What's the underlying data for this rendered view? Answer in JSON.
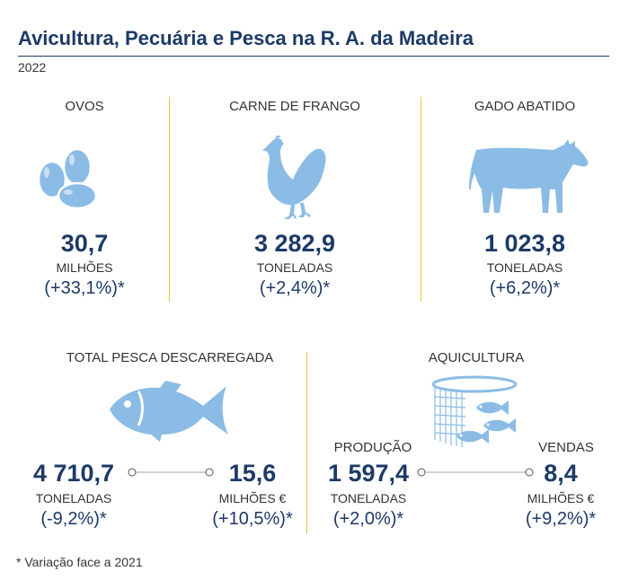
{
  "title": "Avicultura, Pecuária e Pesca na R. A. da Madeira",
  "year": "2022",
  "blocks": {
    "ovos": {
      "label": "OVOS",
      "value": "30,7",
      "unit": "MILHÕES",
      "variation": "(+33,1%)*"
    },
    "frango": {
      "label": "CARNE DE FRANGO",
      "value": "3 282,9",
      "unit": "TONELADAS",
      "variation": "(+2,4%)*"
    },
    "gado": {
      "label": "GADO ABATIDO",
      "value": "1 023,8",
      "unit": "TONELADAS",
      "variation": "(+6,2%)*"
    },
    "pesca": {
      "label": "TOTAL PESCA DESCARREGADA",
      "left": {
        "value": "4 710,7",
        "unit": "TONELADAS",
        "variation": "(-9,2%)*"
      },
      "right": {
        "value": "15,6",
        "unit": "MILHÕES €",
        "variation": "(+10,5%)*"
      }
    },
    "aquicultura": {
      "label": "AQUICULTURA",
      "left": {
        "sublabel": "PRODUÇÃO",
        "value": "1 597,4",
        "unit": "TONELADAS",
        "variation": "(+2,0%)*"
      },
      "right": {
        "sublabel": "VENDAS",
        "value": "8,4",
        "unit": "MILHÕES €",
        "variation": "(+9,2%)*"
      }
    }
  },
  "footnote": "* Variação face a 2021",
  "colors": {
    "primary": "#1d3a66",
    "icon": "#8bbce6",
    "separator": "#e8c53a"
  },
  "icons": [
    "eggs-icon",
    "chicken-icon",
    "cow-icon",
    "fish-icon",
    "fish-farm-icon"
  ]
}
